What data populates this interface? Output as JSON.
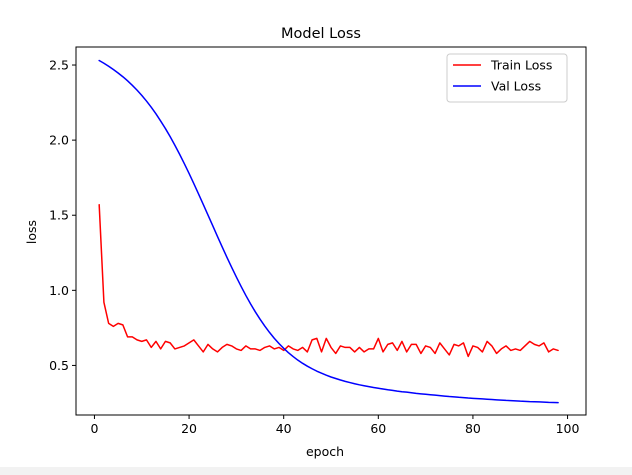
{
  "chart_data": {
    "type": "line",
    "title": "Model Loss",
    "xlabel": "epoch",
    "ylabel": "loss",
    "xlim": [
      -3.9,
      103.9
    ],
    "ylim": [
      0.17,
      2.62
    ],
    "xticks": [
      0,
      20,
      40,
      60,
      80,
      100
    ],
    "yticks": [
      0.5,
      1.0,
      1.5,
      2.0,
      2.5
    ],
    "xtick_labels": [
      "0",
      "20",
      "40",
      "60",
      "80",
      "100"
    ],
    "ytick_labels": [
      "0.5",
      "1.0",
      "1.5",
      "2.0",
      "2.5"
    ],
    "grid": false,
    "legend_position": "top-right",
    "x": [
      1,
      2,
      3,
      4,
      5,
      6,
      7,
      8,
      9,
      10,
      11,
      12,
      13,
      14,
      15,
      16,
      17,
      18,
      19,
      20,
      21,
      22,
      23,
      24,
      25,
      26,
      27,
      28,
      29,
      30,
      31,
      32,
      33,
      34,
      35,
      36,
      37,
      38,
      39,
      40,
      41,
      42,
      43,
      44,
      45,
      46,
      47,
      48,
      49,
      50,
      51,
      52,
      53,
      54,
      55,
      56,
      57,
      58,
      59,
      60,
      61,
      62,
      63,
      64,
      65,
      66,
      67,
      68,
      69,
      70,
      71,
      72,
      73,
      74,
      75,
      76,
      77,
      78,
      79,
      80,
      81,
      82,
      83,
      84,
      85,
      86,
      87,
      88,
      89,
      90,
      91,
      92,
      93,
      94,
      95,
      96,
      97,
      98
    ],
    "series": [
      {
        "name": "Train Loss",
        "color": "#ff0000",
        "values": [
          1.57,
          0.92,
          0.78,
          0.76,
          0.78,
          0.77,
          0.69,
          0.69,
          0.67,
          0.66,
          0.67,
          0.62,
          0.66,
          0.61,
          0.66,
          0.65,
          0.61,
          0.62,
          0.63,
          0.65,
          0.67,
          0.63,
          0.59,
          0.64,
          0.61,
          0.59,
          0.62,
          0.64,
          0.63,
          0.61,
          0.6,
          0.63,
          0.61,
          0.61,
          0.6,
          0.62,
          0.63,
          0.61,
          0.62,
          0.6,
          0.63,
          0.61,
          0.6,
          0.62,
          0.59,
          0.67,
          0.68,
          0.59,
          0.68,
          0.62,
          0.58,
          0.63,
          0.62,
          0.62,
          0.59,
          0.62,
          0.59,
          0.61,
          0.61,
          0.68,
          0.59,
          0.64,
          0.65,
          0.6,
          0.66,
          0.59,
          0.64,
          0.64,
          0.58,
          0.63,
          0.62,
          0.58,
          0.65,
          0.61,
          0.57,
          0.64,
          0.63,
          0.65,
          0.56,
          0.63,
          0.62,
          0.59,
          0.66,
          0.63,
          0.58,
          0.61,
          0.63,
          0.6,
          0.61,
          0.6,
          0.63,
          0.66,
          0.64,
          0.63,
          0.65,
          0.59,
          0.61,
          0.6
        ]
      },
      {
        "name": "Val Loss",
        "color": "#0000ff",
        "values": [
          2.53,
          2.512,
          2.492,
          2.47,
          2.447,
          2.422,
          2.395,
          2.365,
          2.333,
          2.298,
          2.26,
          2.219,
          2.175,
          2.127,
          2.077,
          2.023,
          1.966,
          1.906,
          1.843,
          1.778,
          1.711,
          1.642,
          1.572,
          1.501,
          1.43,
          1.359,
          1.289,
          1.22,
          1.153,
          1.088,
          1.026,
          0.966,
          0.91,
          0.857,
          0.808,
          0.762,
          0.72,
          0.681,
          0.646,
          0.614,
          0.585,
          0.559,
          0.535,
          0.514,
          0.495,
          0.478,
          0.462,
          0.448,
          0.435,
          0.423,
          0.413,
          0.403,
          0.394,
          0.386,
          0.378,
          0.371,
          0.365,
          0.359,
          0.353,
          0.348,
          0.343,
          0.338,
          0.334,
          0.329,
          0.325,
          0.322,
          0.318,
          0.314,
          0.311,
          0.308,
          0.305,
          0.302,
          0.299,
          0.296,
          0.293,
          0.291,
          0.288,
          0.286,
          0.283,
          0.281,
          0.279,
          0.277,
          0.275,
          0.273,
          0.271,
          0.269,
          0.267,
          0.266,
          0.264,
          0.262,
          0.261,
          0.259,
          0.258,
          0.257,
          0.256,
          0.254,
          0.253,
          0.252
        ]
      }
    ]
  }
}
